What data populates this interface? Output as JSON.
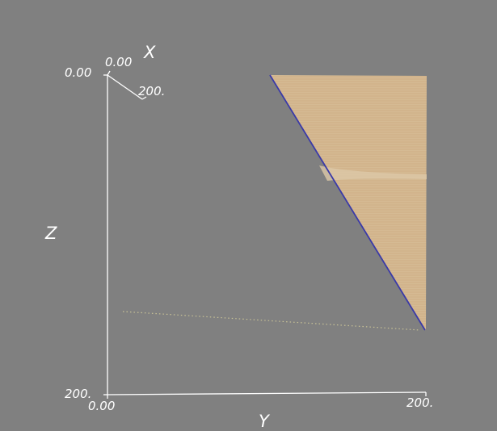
{
  "axes": {
    "x_label": "X",
    "y_label": "Y",
    "z_label": "Z",
    "x_ticks": [
      "0.00",
      "200."
    ],
    "y_ticks": [
      "0.00",
      "200."
    ],
    "z_ticks": [
      "0.00",
      "200."
    ]
  },
  "colors": {
    "background": "#808080",
    "surface": "#d2b48c",
    "edge": "#3a3aa8",
    "axis": "#ffffff",
    "points": "#c8c296"
  }
}
